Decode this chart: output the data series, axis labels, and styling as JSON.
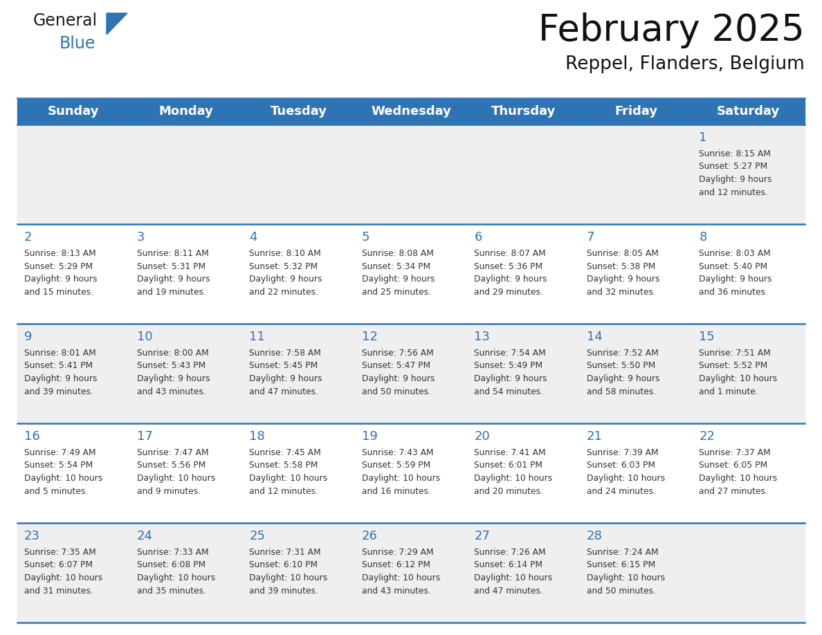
{
  "title": "February 2025",
  "subtitle": "Reppel, Flanders, Belgium",
  "days_of_week": [
    "Sunday",
    "Monday",
    "Tuesday",
    "Wednesday",
    "Thursday",
    "Friday",
    "Saturday"
  ],
  "header_bg": "#2E74B5",
  "header_text_color": "#FFFFFF",
  "row_bg_odd": "#EFEFEF",
  "row_bg_even": "#FFFFFF",
  "cell_text_color": "#333333",
  "day_number_color": "#2E74B5",
  "line_color": "#2E74B5",
  "calendar_data": [
    [
      {
        "day": null,
        "info": null
      },
      {
        "day": null,
        "info": null
      },
      {
        "day": null,
        "info": null
      },
      {
        "day": null,
        "info": null
      },
      {
        "day": null,
        "info": null
      },
      {
        "day": null,
        "info": null
      },
      {
        "day": 1,
        "info": "Sunrise: 8:15 AM\nSunset: 5:27 PM\nDaylight: 9 hours\nand 12 minutes."
      }
    ],
    [
      {
        "day": 2,
        "info": "Sunrise: 8:13 AM\nSunset: 5:29 PM\nDaylight: 9 hours\nand 15 minutes."
      },
      {
        "day": 3,
        "info": "Sunrise: 8:11 AM\nSunset: 5:31 PM\nDaylight: 9 hours\nand 19 minutes."
      },
      {
        "day": 4,
        "info": "Sunrise: 8:10 AM\nSunset: 5:32 PM\nDaylight: 9 hours\nand 22 minutes."
      },
      {
        "day": 5,
        "info": "Sunrise: 8:08 AM\nSunset: 5:34 PM\nDaylight: 9 hours\nand 25 minutes."
      },
      {
        "day": 6,
        "info": "Sunrise: 8:07 AM\nSunset: 5:36 PM\nDaylight: 9 hours\nand 29 minutes."
      },
      {
        "day": 7,
        "info": "Sunrise: 8:05 AM\nSunset: 5:38 PM\nDaylight: 9 hours\nand 32 minutes."
      },
      {
        "day": 8,
        "info": "Sunrise: 8:03 AM\nSunset: 5:40 PM\nDaylight: 9 hours\nand 36 minutes."
      }
    ],
    [
      {
        "day": 9,
        "info": "Sunrise: 8:01 AM\nSunset: 5:41 PM\nDaylight: 9 hours\nand 39 minutes."
      },
      {
        "day": 10,
        "info": "Sunrise: 8:00 AM\nSunset: 5:43 PM\nDaylight: 9 hours\nand 43 minutes."
      },
      {
        "day": 11,
        "info": "Sunrise: 7:58 AM\nSunset: 5:45 PM\nDaylight: 9 hours\nand 47 minutes."
      },
      {
        "day": 12,
        "info": "Sunrise: 7:56 AM\nSunset: 5:47 PM\nDaylight: 9 hours\nand 50 minutes."
      },
      {
        "day": 13,
        "info": "Sunrise: 7:54 AM\nSunset: 5:49 PM\nDaylight: 9 hours\nand 54 minutes."
      },
      {
        "day": 14,
        "info": "Sunrise: 7:52 AM\nSunset: 5:50 PM\nDaylight: 9 hours\nand 58 minutes."
      },
      {
        "day": 15,
        "info": "Sunrise: 7:51 AM\nSunset: 5:52 PM\nDaylight: 10 hours\nand 1 minute."
      }
    ],
    [
      {
        "day": 16,
        "info": "Sunrise: 7:49 AM\nSunset: 5:54 PM\nDaylight: 10 hours\nand 5 minutes."
      },
      {
        "day": 17,
        "info": "Sunrise: 7:47 AM\nSunset: 5:56 PM\nDaylight: 10 hours\nand 9 minutes."
      },
      {
        "day": 18,
        "info": "Sunrise: 7:45 AM\nSunset: 5:58 PM\nDaylight: 10 hours\nand 12 minutes."
      },
      {
        "day": 19,
        "info": "Sunrise: 7:43 AM\nSunset: 5:59 PM\nDaylight: 10 hours\nand 16 minutes."
      },
      {
        "day": 20,
        "info": "Sunrise: 7:41 AM\nSunset: 6:01 PM\nDaylight: 10 hours\nand 20 minutes."
      },
      {
        "day": 21,
        "info": "Sunrise: 7:39 AM\nSunset: 6:03 PM\nDaylight: 10 hours\nand 24 minutes."
      },
      {
        "day": 22,
        "info": "Sunrise: 7:37 AM\nSunset: 6:05 PM\nDaylight: 10 hours\nand 27 minutes."
      }
    ],
    [
      {
        "day": 23,
        "info": "Sunrise: 7:35 AM\nSunset: 6:07 PM\nDaylight: 10 hours\nand 31 minutes."
      },
      {
        "day": 24,
        "info": "Sunrise: 7:33 AM\nSunset: 6:08 PM\nDaylight: 10 hours\nand 35 minutes."
      },
      {
        "day": 25,
        "info": "Sunrise: 7:31 AM\nSunset: 6:10 PM\nDaylight: 10 hours\nand 39 minutes."
      },
      {
        "day": 26,
        "info": "Sunrise: 7:29 AM\nSunset: 6:12 PM\nDaylight: 10 hours\nand 43 minutes."
      },
      {
        "day": 27,
        "info": "Sunrise: 7:26 AM\nSunset: 6:14 PM\nDaylight: 10 hours\nand 47 minutes."
      },
      {
        "day": 28,
        "info": "Sunrise: 7:24 AM\nSunset: 6:15 PM\nDaylight: 10 hours\nand 50 minutes."
      },
      {
        "day": null,
        "info": null
      }
    ]
  ],
  "logo_general_color": "#1a1a1a",
  "logo_blue_color": "#2E74B5",
  "logo_triangle_color": "#2E74B5",
  "fig_width": 11.88,
  "fig_height": 9.18,
  "dpi": 100
}
